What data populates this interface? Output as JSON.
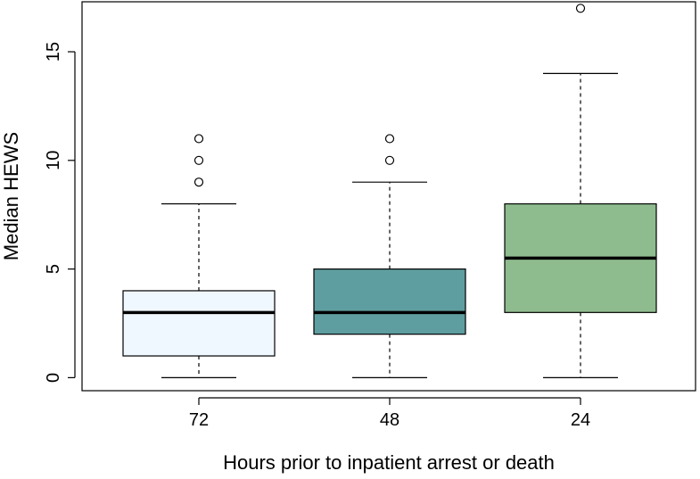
{
  "chart_data": {
    "type": "boxplot",
    "title": "",
    "xlabel": "Hours prior to inpatient arrest or death",
    "ylabel": "Median HEWS",
    "ylim": [
      -0.6,
      17.3
    ],
    "yticks": [
      0,
      5,
      10,
      15
    ],
    "grid": false,
    "categories": [
      "72",
      "48",
      "24"
    ],
    "boxes": [
      {
        "category": "72",
        "whisker_low": 0,
        "q1": 1,
        "median": 3,
        "q3": 4,
        "whisker_high": 8,
        "outliers": [
          9,
          10,
          11
        ],
        "color": "#f0f8ff"
      },
      {
        "category": "48",
        "whisker_low": 0,
        "q1": 2,
        "median": 3,
        "q3": 5,
        "whisker_high": 9,
        "outliers": [
          10,
          11
        ],
        "color": "#5f9ea0"
      },
      {
        "category": "24",
        "whisker_low": 0,
        "q1": 3,
        "median": 5.5,
        "q3": 8,
        "whisker_high": 14,
        "outliers": [
          17
        ],
        "color": "#8fbc8f"
      }
    ]
  }
}
